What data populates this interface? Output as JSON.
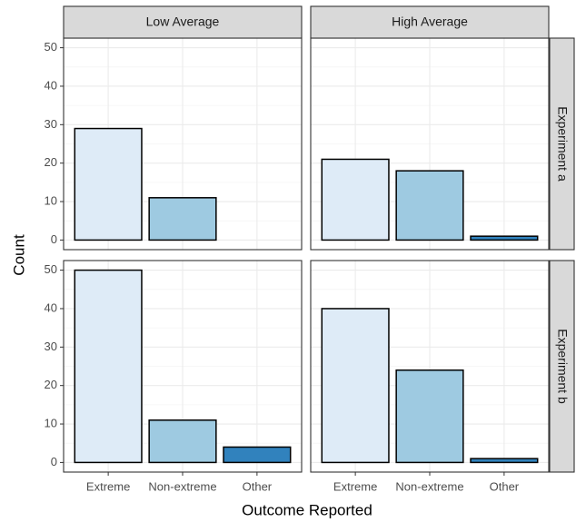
{
  "chart_data": {
    "type": "bar",
    "x_label": "Outcome Reported",
    "y_label": "Count",
    "categories": [
      "Extreme",
      "Non-extreme",
      "Other"
    ],
    "colors": [
      "#deebf7",
      "#9ecae1",
      "#3182bd"
    ],
    "columns": [
      "Low Average",
      "High Average"
    ],
    "rows": [
      "Experiment a",
      "Experiment b"
    ],
    "panels": [
      {
        "values": [
          29,
          11,
          null
        ]
      },
      {
        "values": [
          21,
          18,
          1
        ]
      },
      {
        "values": [
          50,
          11,
          4
        ]
      },
      {
        "values": [
          40,
          24,
          1
        ]
      }
    ],
    "ylim": [
      -2.5,
      52.5
    ],
    "yticks": [
      0,
      10,
      20,
      30,
      40,
      50
    ],
    "y_minor_ticks": [
      5,
      15,
      25,
      35,
      45
    ],
    "grid": true
  }
}
